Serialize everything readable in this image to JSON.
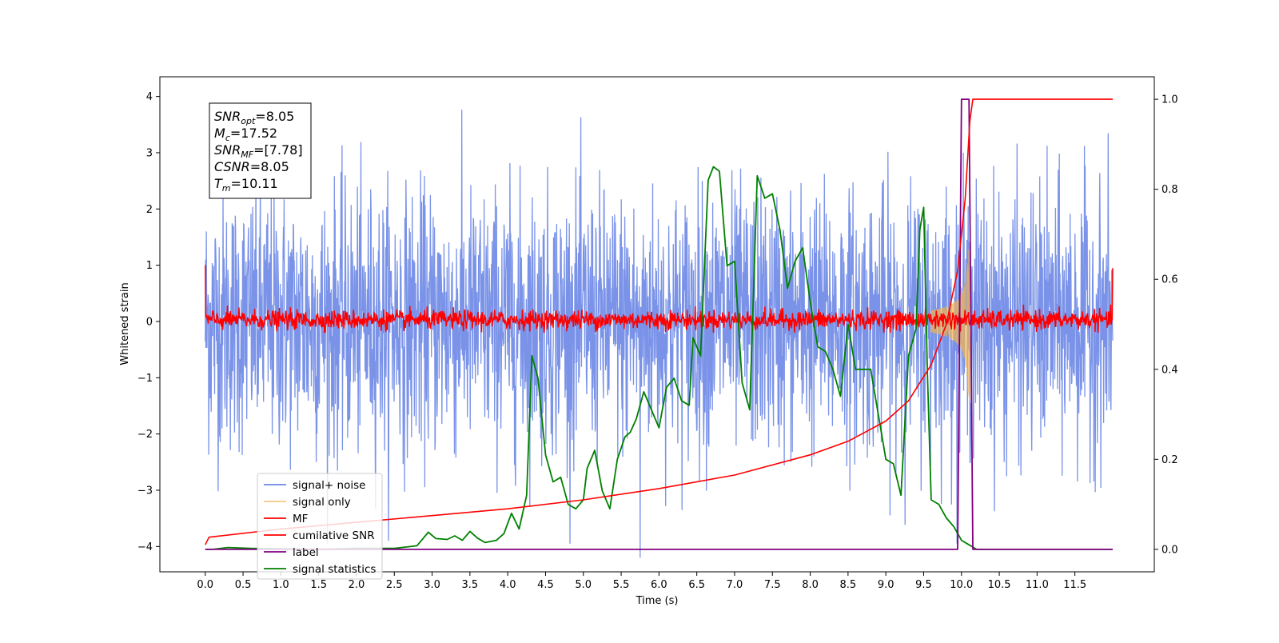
{
  "chart_data": {
    "type": "line",
    "xlabel": "Time (s)",
    "ylabel": "Whitened strain",
    "y2label": "",
    "xlim": [
      -0.6,
      12.55
    ],
    "ylim": [
      -4.45,
      4.35
    ],
    "y2lim": [
      -0.05,
      1.05
    ],
    "x_ticks": [
      0.0,
      0.5,
      1.0,
      1.5,
      2.0,
      2.5,
      3.0,
      3.5,
      4.0,
      4.5,
      5.0,
      5.5,
      6.0,
      6.5,
      7.0,
      7.5,
      8.0,
      8.5,
      9.0,
      9.5,
      10.0,
      10.5,
      11.0,
      11.5
    ],
    "x_tick_labels": [
      "0.0",
      "0.5",
      "1.0",
      "1.5",
      "2.0",
      "2.5",
      "3.0",
      "3.5",
      "4.0",
      "4.5",
      "5.0",
      "5.5",
      "6.0",
      "6.5",
      "7.0",
      "7.5",
      "8.0",
      "8.5",
      "9.0",
      "9.5",
      "10.0",
      "10.5",
      "11.0",
      "11.5"
    ],
    "y_ticks": [
      -4,
      -3,
      -2,
      -1,
      0,
      1,
      2,
      3,
      4
    ],
    "y_tick_labels": [
      "−4",
      "−3",
      "−2",
      "−1",
      "0",
      "1",
      "2",
      "3",
      "4"
    ],
    "y2_ticks": [
      0.0,
      0.2,
      0.4,
      0.6,
      0.8,
      1.0
    ],
    "y2_tick_labels": [
      "0.0",
      "0.2",
      "0.4",
      "0.6",
      "0.8",
      "1.0"
    ],
    "legend_position": "lower-left",
    "grid": false,
    "info_box": {
      "lines": [
        {
          "sym": "SNR",
          "sub": "opt",
          "rest": "=8.05"
        },
        {
          "sym": "M",
          "sub": "c",
          "rest": "=17.52"
        },
        {
          "sym": "SNR",
          "sub": "MF",
          "rest": "=[7.78]"
        },
        {
          "sym": "CSNR",
          "sub": "",
          "rest": "=8.05"
        },
        {
          "sym": "T",
          "sub": "m",
          "rest": "=10.11"
        }
      ]
    },
    "series": [
      {
        "name": "signal+ noise",
        "color": "#6b87e6",
        "axis": "left",
        "t_range": [
          0.0,
          12.0
        ],
        "amplitude_typical": 2.0,
        "amplitude_max": 4.0,
        "min_spike": {
          "t": 5.75,
          "y": -4.2
        }
      },
      {
        "name": "signal only",
        "color": "#f4b350",
        "axis": "left",
        "chirp": {
          "t_start": 9.6,
          "t_merger": 10.11,
          "peak_amplitude": 1.4
        }
      },
      {
        "name": "MF",
        "color": "#ff0000",
        "axis": "left",
        "t_range": [
          0.0,
          12.0
        ],
        "band": [
          -0.2,
          0.3
        ],
        "start_value": 1.0,
        "end_value": 0.95
      },
      {
        "name": "cumilative SNR",
        "color": "#ff0000",
        "axis": "right",
        "t_range": [
          0.0,
          12.0
        ],
        "x": [
          0.0,
          0.05,
          1.0,
          2.0,
          3.0,
          4.0,
          5.0,
          6.0,
          7.0,
          8.0,
          8.5,
          9.0,
          9.3,
          9.6,
          9.8,
          9.95,
          10.05,
          10.11,
          10.15,
          12.0
        ],
        "y": [
          0.01,
          0.027,
          0.045,
          0.06,
          0.075,
          0.09,
          0.11,
          0.135,
          0.165,
          0.21,
          0.24,
          0.285,
          0.33,
          0.41,
          0.5,
          0.62,
          0.78,
          0.95,
          1.0,
          1.0
        ]
      },
      {
        "name": "label",
        "color": "#800080",
        "axis": "right",
        "x": [
          0.0,
          9.95,
          10.0,
          10.1,
          10.15,
          12.0
        ],
        "y": [
          0.0,
          0.0,
          1.0,
          1.0,
          0.0,
          0.0
        ]
      },
      {
        "name": "signal statistics",
        "color": "#008000",
        "axis": "right",
        "x": [
          0.0,
          0.1,
          0.3,
          0.6,
          1.0,
          1.5,
          2.0,
          2.5,
          2.8,
          2.95,
          3.05,
          3.2,
          3.3,
          3.4,
          3.5,
          3.6,
          3.7,
          3.85,
          3.95,
          4.05,
          4.15,
          4.25,
          4.32,
          4.4,
          4.5,
          4.6,
          4.7,
          4.8,
          4.9,
          5.0,
          5.05,
          5.15,
          5.25,
          5.35,
          5.45,
          5.55,
          5.62,
          5.7,
          5.8,
          5.9,
          6.0,
          6.1,
          6.2,
          6.3,
          6.4,
          6.45,
          6.55,
          6.65,
          6.72,
          6.8,
          6.9,
          7.0,
          7.1,
          7.2,
          7.3,
          7.4,
          7.5,
          7.6,
          7.7,
          7.8,
          7.9,
          8.0,
          8.1,
          8.2,
          8.3,
          8.4,
          8.5,
          8.6,
          8.7,
          8.8,
          8.9,
          9.0,
          9.1,
          9.2,
          9.3,
          9.4,
          9.45,
          9.5,
          9.55,
          9.6,
          9.7,
          9.8,
          9.9,
          10.0,
          10.1,
          10.2,
          10.5,
          11.0,
          11.5,
          11.99
        ],
        "y": [
          0.0,
          0.0,
          0.004,
          0.002,
          0.001,
          0.0,
          0.002,
          0.002,
          0.008,
          0.038,
          0.024,
          0.022,
          0.03,
          0.02,
          0.04,
          0.025,
          0.015,
          0.02,
          0.035,
          0.08,
          0.045,
          0.12,
          0.43,
          0.38,
          0.21,
          0.15,
          0.16,
          0.1,
          0.09,
          0.11,
          0.18,
          0.22,
          0.13,
          0.09,
          0.2,
          0.25,
          0.26,
          0.29,
          0.35,
          0.31,
          0.27,
          0.36,
          0.38,
          0.33,
          0.32,
          0.47,
          0.43,
          0.82,
          0.85,
          0.84,
          0.63,
          0.64,
          0.37,
          0.31,
          0.83,
          0.78,
          0.79,
          0.71,
          0.58,
          0.64,
          0.67,
          0.55,
          0.45,
          0.44,
          0.4,
          0.34,
          0.5,
          0.4,
          0.4,
          0.4,
          0.3,
          0.2,
          0.19,
          0.12,
          0.43,
          0.49,
          0.71,
          0.76,
          0.39,
          0.11,
          0.1,
          0.07,
          0.05,
          0.02,
          0.01,
          0.0,
          0.0,
          0.0,
          0.0,
          0.0
        ]
      }
    ]
  }
}
